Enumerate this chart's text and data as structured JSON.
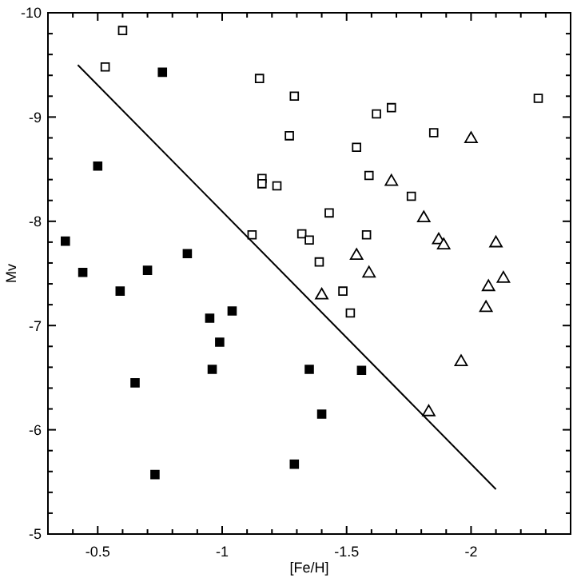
{
  "chart_data": {
    "type": "scatter",
    "xlabel": "[Fe/H]",
    "ylabel": "Mv",
    "xlim": [
      -0.3,
      -2.4
    ],
    "ylim": [
      -5,
      -10
    ],
    "xticks": [
      {
        "value": -0.4,
        "label": null
      },
      -0.5,
      {
        "value": -0.6,
        "label": null
      },
      {
        "value": -0.7,
        "label": null
      },
      {
        "value": -0.8,
        "label": null
      },
      {
        "value": -0.9,
        "label": null
      },
      -1,
      {
        "value": -1.1,
        "label": null
      },
      {
        "value": -1.2,
        "label": null
      },
      {
        "value": -1.3,
        "label": null
      },
      {
        "value": -1.4,
        "label": null
      },
      -1.5,
      {
        "value": -1.6,
        "label": null
      },
      {
        "value": -1.7,
        "label": null
      },
      {
        "value": -1.8,
        "label": null
      },
      {
        "value": -1.9,
        "label": null
      },
      -2,
      {
        "value": -2.1,
        "label": null
      },
      {
        "value": -2.2,
        "label": null
      },
      {
        "value": -2.3,
        "label": null
      }
    ],
    "yticks": [
      -5,
      {
        "value": -5.2,
        "label": null
      },
      {
        "value": -5.4,
        "label": null
      },
      {
        "value": -5.6,
        "label": null
      },
      {
        "value": -5.8,
        "label": null
      },
      -6,
      {
        "value": -6.2,
        "label": null
      },
      {
        "value": -6.4,
        "label": null
      },
      {
        "value": -6.6,
        "label": null
      },
      {
        "value": -6.8,
        "label": null
      },
      -7,
      {
        "value": -7.2,
        "label": null
      },
      {
        "value": -7.4,
        "label": null
      },
      {
        "value": -7.6,
        "label": null
      },
      {
        "value": -7.8,
        "label": null
      },
      -8,
      {
        "value": -8.2,
        "label": null
      },
      {
        "value": -8.4,
        "label": null
      },
      {
        "value": -8.6,
        "label": null
      },
      {
        "value": -8.8,
        "label": null
      },
      -9,
      {
        "value": -9.2,
        "label": null
      },
      {
        "value": -9.4,
        "label": null
      },
      {
        "value": -9.6,
        "label": null
      },
      {
        "value": -9.8,
        "label": null
      },
      -10
    ],
    "grid": false,
    "series": [
      {
        "marker": "square",
        "color": "#000000",
        "x": [
          -0.37,
          -0.44,
          -0.5,
          -0.59,
          -0.65,
          -0.7,
          -0.73,
          -0.76,
          -0.86,
          -0.95,
          -0.96,
          -0.99,
          -1.04,
          -1.29,
          -1.35,
          -1.4,
          -1.56
        ],
        "values": [
          -7.81,
          -7.51,
          -8.53,
          -7.33,
          -6.45,
          -7.53,
          -5.57,
          -9.43,
          -7.69,
          -7.07,
          -6.58,
          -6.84,
          -7.14,
          -5.67,
          -6.58,
          -6.15,
          -6.57
        ]
      },
      {
        "marker": "square",
        "color": "#ffffff",
        "x": [
          -0.6,
          -0.53,
          -1.15,
          -1.29,
          -1.27,
          -1.16,
          -1.16,
          -1.22,
          -1.12,
          -1.32,
          -1.62,
          -1.68,
          -2.27,
          -1.85,
          -1.54,
          -1.59,
          -1.76,
          -1.43,
          -1.35,
          -1.58,
          -1.39,
          -1.485,
          -1.515
        ],
        "values": [
          -9.83,
          -9.48,
          -9.37,
          -9.2,
          -8.82,
          -8.41,
          -8.36,
          -8.34,
          -7.87,
          -7.88,
          -9.03,
          -9.09,
          -9.18,
          -8.85,
          -8.71,
          -8.44,
          -8.24,
          -8.08,
          -7.82,
          -7.87,
          -7.61,
          -7.33,
          -7.12
        ]
      },
      {
        "marker": "triangle",
        "color": "#ffffff",
        "x": [
          -2.0,
          -1.68,
          -1.81,
          -1.87,
          -1.89,
          -2.1,
          -1.54,
          -1.59,
          -2.13,
          -1.4,
          -2.07,
          -2.06,
          -1.96,
          -1.83
        ],
        "values": [
          -8.79,
          -8.38,
          -8.03,
          -7.82,
          -7.77,
          -7.79,
          -7.67,
          -7.5,
          -7.45,
          -7.29,
          -7.37,
          -7.17,
          -6.65,
          -6.17
        ]
      },
      {
        "type": "line",
        "marker": "none",
        "line_style": "solid",
        "color": "#000000",
        "x": [
          -0.42,
          -2.1
        ],
        "values": [
          -9.5,
          -5.43
        ]
      }
    ]
  }
}
